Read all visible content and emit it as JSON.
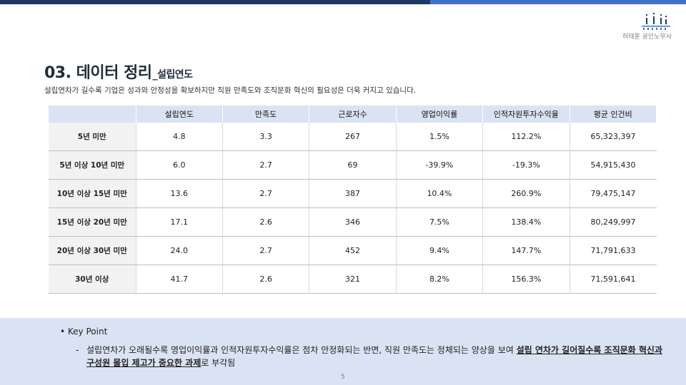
{
  "header": {
    "firm_name": "허태훈 공인노무사",
    "accent_dark": "#1f3864",
    "accent_light": "#4472c4"
  },
  "title": {
    "main": "03. 데이터 정리",
    "sub": "_설립연도"
  },
  "description": "설립연차가 길수록 기업은 성과와 안정성을 확보하지만 직원 만족도와 조직문화 혁신의 필요성은 더욱 커지고 있습니다.",
  "table": {
    "columns": [
      "",
      "설립연도",
      "만족도",
      "근로자수",
      "영업이익률",
      "인적자원투자수익율",
      "평균 인건비"
    ],
    "rows": [
      {
        "label": "5년 미만",
        "cells": [
          "4.8",
          "3.3",
          "267",
          "1.5%",
          "112.2%",
          "65,323,397"
        ]
      },
      {
        "label": "5년 이상 10년 미만",
        "cells": [
          "6.0",
          "2.7",
          "69",
          "-39.9%",
          "-19.3%",
          "54,915,430"
        ]
      },
      {
        "label": "10년 이상 15년 미만",
        "cells": [
          "13.6",
          "2.7",
          "387",
          "10.4%",
          "260.9%",
          "79,475,147"
        ]
      },
      {
        "label": "15년 이상 20년 미만",
        "cells": [
          "17.1",
          "2.6",
          "346",
          "7.5%",
          "138.4%",
          "80,249,997"
        ]
      },
      {
        "label": "20년 이상 30년 미만",
        "cells": [
          "24.0",
          "2.7",
          "452",
          "9.4%",
          "147.7%",
          "71,791,633"
        ]
      },
      {
        "label": "30년 이상",
        "cells": [
          "41.7",
          "2.6",
          "321",
          "8.2%",
          "156.3%",
          "71,591,641"
        ]
      }
    ]
  },
  "key_point": {
    "bullet": "•",
    "heading": "Key Point",
    "dash": "-",
    "text_before": "설립연차가 오래될수록 영업이익률과 인적자원투자수익률은 점차 안정화되는 반면, 직원 만족도는 정체되는 양상을 보여 ",
    "text_highlight": "설립 연차가 길어질수록 조직문화 혁신과 구성원 몰입 제고가 중요한 과제",
    "text_after": "로 부각됨"
  },
  "page_number": "5"
}
